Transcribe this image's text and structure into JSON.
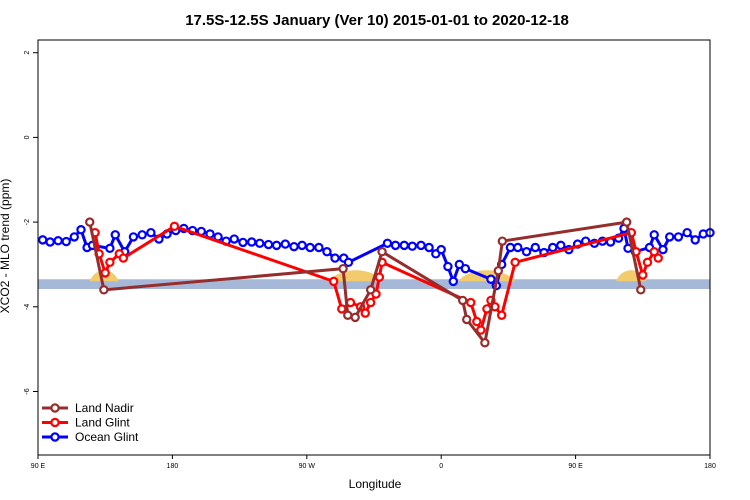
{
  "chart_data": {
    "type": "line",
    "title": "17.5S-12.5S January (Ver 10)   2015-01-01 to 2020-12-18",
    "xlabel": "Longitude",
    "ylabel": "XCO2 - MLO trend (ppm)",
    "xlim": [
      0,
      1
    ],
    "ylim": [
      -7.5,
      2.3
    ],
    "x_ticks": [
      {
        "pos": 0.0,
        "label": "90 E"
      },
      {
        "pos": 0.2,
        "label": "180"
      },
      {
        "pos": 0.4,
        "label": "90 W"
      },
      {
        "pos": 0.6,
        "label": "0"
      },
      {
        "pos": 0.8,
        "label": "90 E"
      },
      {
        "pos": 1.0,
        "label": "180"
      }
    ],
    "y_ticks": [
      2,
      0,
      -2,
      -4,
      -6
    ],
    "band": {
      "y_top": -3.35,
      "y_bottom": -3.58,
      "color": "#a6b8d8"
    },
    "land_markers": [
      [
        0.077,
        0.12
      ],
      [
        0.433,
        0.513
      ],
      [
        0.625,
        0.71
      ],
      [
        0.86,
        0.905
      ]
    ],
    "land_color": "#f2cb6c",
    "legend_position": "bottom-left",
    "series": [
      {
        "name": "Land Nadir",
        "color": "#962d2d",
        "points": [
          [
            0.077,
            -2.0
          ],
          [
            0.098,
            -3.6
          ],
          [
            0.454,
            -3.1
          ],
          [
            0.461,
            -4.2
          ],
          [
            0.472,
            -4.25
          ],
          [
            0.495,
            -3.6
          ],
          [
            0.512,
            -2.7
          ],
          [
            0.632,
            -3.85
          ],
          [
            0.638,
            -4.3
          ],
          [
            0.665,
            -4.85
          ],
          [
            0.685,
            -3.15
          ],
          [
            0.691,
            -2.45
          ],
          [
            0.876,
            -2.0
          ],
          [
            0.897,
            -3.6
          ]
        ]
      },
      {
        "name": "Land Glint",
        "color": "#ff0000",
        "points": [
          [
            0.085,
            -2.25
          ],
          [
            0.091,
            -2.75
          ],
          [
            0.1,
            -3.2
          ],
          [
            0.107,
            -2.95
          ],
          [
            0.121,
            -2.75
          ],
          [
            0.127,
            -2.85
          ],
          [
            0.203,
            -2.1
          ],
          [
            0.44,
            -3.4
          ],
          [
            0.452,
            -4.05
          ],
          [
            0.465,
            -3.9
          ],
          [
            0.48,
            -4.0
          ],
          [
            0.487,
            -4.15
          ],
          [
            0.495,
            -3.9
          ],
          [
            0.503,
            -3.7
          ],
          [
            0.508,
            -3.3
          ],
          [
            0.512,
            -2.95
          ],
          [
            0.644,
            -3.9
          ],
          [
            0.653,
            -4.35
          ],
          [
            0.659,
            -4.55
          ],
          [
            0.668,
            -4.05
          ],
          [
            0.674,
            -3.85
          ],
          [
            0.68,
            -4.0
          ],
          [
            0.69,
            -4.2
          ],
          [
            0.71,
            -2.95
          ],
          [
            0.883,
            -2.25
          ],
          [
            0.89,
            -2.7
          ],
          [
            0.9,
            -3.25
          ],
          [
            0.907,
            -2.95
          ],
          [
            0.917,
            -2.7
          ],
          [
            0.923,
            -2.85
          ]
        ]
      },
      {
        "name": "Ocean Glint",
        "color": "#0000ff",
        "points": [
          [
            0.007,
            -2.42
          ],
          [
            0.018,
            -2.47
          ],
          [
            0.03,
            -2.44
          ],
          [
            0.042,
            -2.46
          ],
          [
            0.054,
            -2.35
          ],
          [
            0.064,
            -2.18
          ],
          [
            0.073,
            -2.6
          ],
          [
            0.081,
            -2.55
          ],
          [
            0.107,
            -2.62
          ],
          [
            0.115,
            -2.3
          ],
          [
            0.129,
            -2.7
          ],
          [
            0.142,
            -2.35
          ],
          [
            0.155,
            -2.3
          ],
          [
            0.168,
            -2.25
          ],
          [
            0.18,
            -2.4
          ],
          [
            0.192,
            -2.28
          ],
          [
            0.205,
            -2.2
          ],
          [
            0.217,
            -2.15
          ],
          [
            0.23,
            -2.2
          ],
          [
            0.243,
            -2.22
          ],
          [
            0.256,
            -2.28
          ],
          [
            0.268,
            -2.35
          ],
          [
            0.28,
            -2.45
          ],
          [
            0.292,
            -2.4
          ],
          [
            0.305,
            -2.48
          ],
          [
            0.318,
            -2.47
          ],
          [
            0.33,
            -2.5
          ],
          [
            0.343,
            -2.53
          ],
          [
            0.355,
            -2.55
          ],
          [
            0.368,
            -2.52
          ],
          [
            0.381,
            -2.58
          ],
          [
            0.393,
            -2.55
          ],
          [
            0.405,
            -2.6
          ],
          [
            0.418,
            -2.6
          ],
          [
            0.43,
            -2.7
          ],
          [
            0.442,
            -2.85
          ],
          [
            0.455,
            -2.85
          ],
          [
            0.462,
            -2.95
          ],
          [
            0.52,
            -2.5
          ],
          [
            0.532,
            -2.55
          ],
          [
            0.545,
            -2.55
          ],
          [
            0.557,
            -2.57
          ],
          [
            0.57,
            -2.55
          ],
          [
            0.582,
            -2.6
          ],
          [
            0.592,
            -2.75
          ],
          [
            0.6,
            -2.65
          ],
          [
            0.61,
            -3.05
          ],
          [
            0.618,
            -3.4
          ],
          [
            0.627,
            -3.0
          ],
          [
            0.636,
            -3.1
          ],
          [
            0.674,
            -3.35
          ],
          [
            0.682,
            -3.5
          ],
          [
            0.69,
            -3.0
          ],
          [
            0.703,
            -2.6
          ],
          [
            0.714,
            -2.6
          ],
          [
            0.727,
            -2.7
          ],
          [
            0.74,
            -2.6
          ],
          [
            0.753,
            -2.72
          ],
          [
            0.766,
            -2.6
          ],
          [
            0.778,
            -2.55
          ],
          [
            0.79,
            -2.65
          ],
          [
            0.803,
            -2.52
          ],
          [
            0.815,
            -2.45
          ],
          [
            0.828,
            -2.5
          ],
          [
            0.84,
            -2.45
          ],
          [
            0.852,
            -2.47
          ],
          [
            0.864,
            -2.38
          ],
          [
            0.872,
            -2.15
          ],
          [
            0.878,
            -2.62
          ],
          [
            0.889,
            -2.7
          ],
          [
            0.91,
            -2.6
          ],
          [
            0.917,
            -2.3
          ],
          [
            0.93,
            -2.65
          ],
          [
            0.94,
            -2.35
          ],
          [
            0.953,
            -2.35
          ],
          [
            0.966,
            -2.25
          ],
          [
            0.978,
            -2.42
          ],
          [
            0.99,
            -2.28
          ],
          [
            1.0,
            -2.25
          ]
        ]
      }
    ]
  }
}
